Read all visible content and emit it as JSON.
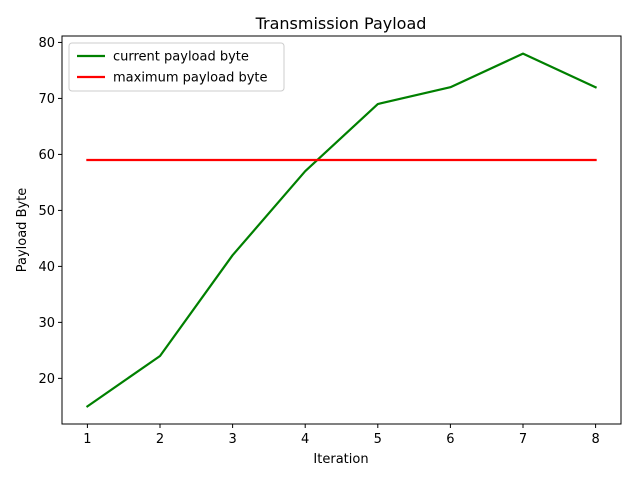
{
  "chart_data": {
    "type": "line",
    "title": "Transmission Payload",
    "xlabel": "Iteration",
    "ylabel": "Payload Byte",
    "x": [
      1,
      2,
      3,
      4,
      5,
      6,
      7,
      8
    ],
    "xticks": [
      1,
      2,
      3,
      4,
      5,
      6,
      7,
      8
    ],
    "yticks": [
      20,
      30,
      40,
      50,
      60,
      70,
      80
    ],
    "xlim": [
      0.65,
      8.35
    ],
    "ylim": [
      11.85,
      81.15
    ],
    "grid": false,
    "legend_position": "upper-left",
    "series": [
      {
        "name": "current payload byte",
        "color": "#008000",
        "values": [
          15,
          24,
          42,
          57,
          69,
          72,
          78,
          72
        ]
      },
      {
        "name": "maximum payload byte",
        "color": "#ff0000",
        "values": [
          59,
          59,
          59,
          59,
          59,
          59,
          59,
          59
        ]
      }
    ]
  }
}
